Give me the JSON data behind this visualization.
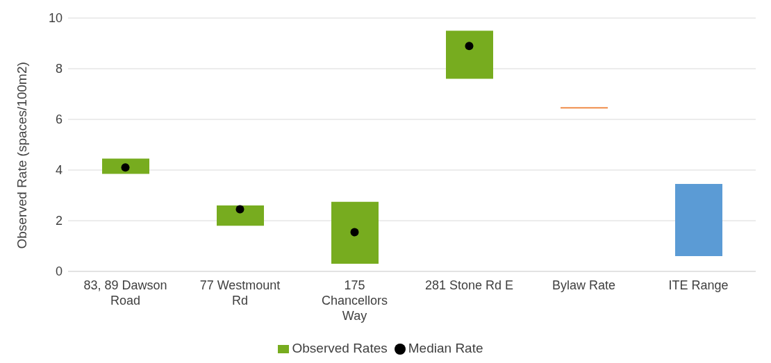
{
  "chart_data": {
    "type": "bar",
    "ylabel": "Observed Rate (spaces/100m2)",
    "categories": [
      "83, 89 Dawson Road",
      "77 Westmount Rd",
      "175 Chancellors Way",
      "281 Stone Rd E",
      "Bylaw Rate",
      "ITE Range"
    ],
    "series": [
      {
        "name": "Observed Rates",
        "color": "#77ac1f",
        "colors": [
          "#77ac1f",
          "#77ac1f",
          "#77ac1f",
          "#77ac1f",
          "#ed7d31",
          "#5b9bd5"
        ],
        "base": [
          3.85,
          1.8,
          0.3,
          7.6,
          6.43,
          0.6
        ],
        "values": [
          0.6,
          0.8,
          2.45,
          1.9,
          0.05,
          2.85
        ]
      },
      {
        "name": "Median Rate",
        "type": "scatter",
        "color": "#000000",
        "marker": "circle",
        "values": [
          4.1,
          2.45,
          1.55,
          8.9,
          null,
          null
        ]
      }
    ],
    "ylim": [
      0,
      10
    ],
    "yticks": [
      0,
      2,
      4,
      6,
      8,
      10
    ],
    "grid": "y",
    "legend": "bottom"
  }
}
